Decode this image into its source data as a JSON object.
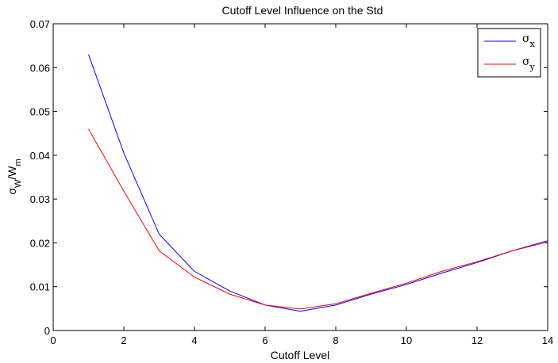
{
  "chart_data": {
    "type": "line",
    "title": "Cutoff Level Influence on the Std",
    "xlabel": "Cutoff Level",
    "ylabel": {
      "sym": "σ",
      "sub1": "W",
      "sep": "/W",
      "sub2": "m"
    },
    "xlim": [
      0,
      14
    ],
    "ylim": [
      0,
      0.07
    ],
    "xticks": [
      0,
      2,
      4,
      6,
      8,
      10,
      12,
      14
    ],
    "yticks": [
      0,
      0.01,
      0.02,
      0.03,
      0.04,
      0.05,
      0.06,
      0.07
    ],
    "xtick_labels": [
      "0",
      "2",
      "4",
      "6",
      "8",
      "10",
      "12",
      "14"
    ],
    "ytick_labels": [
      "0",
      "0.01",
      "0.02",
      "0.03",
      "0.04",
      "0.05",
      "0.06",
      "0.07"
    ],
    "legend_position": "top-right",
    "grid": false,
    "x": [
      1,
      2,
      3,
      4,
      5,
      6,
      7,
      8,
      9,
      10,
      11,
      12,
      13,
      14
    ],
    "series": [
      {
        "name": "σ",
        "sub": "x",
        "color": "#0000ff",
        "values": [
          0.063,
          0.0405,
          0.022,
          0.0135,
          0.009,
          0.0058,
          0.0044,
          0.0058,
          0.0083,
          0.0105,
          0.0131,
          0.0155,
          0.0182,
          0.0205
        ]
      },
      {
        "name": "σ",
        "sub": "y",
        "color": "#ff0000",
        "values": [
          0.046,
          0.0318,
          0.0182,
          0.0122,
          0.0083,
          0.0058,
          0.0049,
          0.0061,
          0.0085,
          0.0108,
          0.0135,
          0.0157,
          0.0182,
          0.0202
        ]
      }
    ]
  }
}
